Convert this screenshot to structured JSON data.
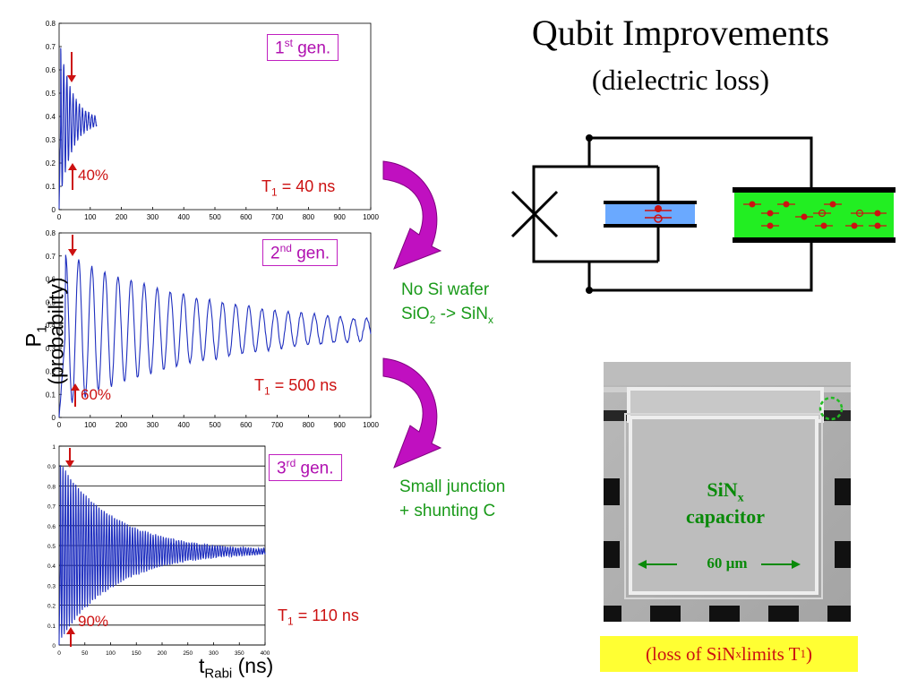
{
  "slide": {
    "title": "Qubit Improvements",
    "subtitle": "(dielectric loss)",
    "y_axis_label_main": "P",
    "y_axis_label_sub": "1",
    "y_axis_label_paren": "(probability)",
    "x_axis_label_main": "t",
    "x_axis_label_sub": "Rabi",
    "x_axis_label_unit": "(ns)",
    "caption_pre": "(loss of SiN",
    "caption_sub": "x",
    "caption_mid": " limits T",
    "caption_sub2": "1",
    "caption_post": ")"
  },
  "generations": [
    {
      "gen_num": "1",
      "gen_sup": "st",
      "gen_word": " gen.",
      "t1_main": "T",
      "t1_sub": "1",
      "t1_value": " = 40 ns",
      "percent": "40%"
    },
    {
      "gen_num": "2",
      "gen_sup": "nd",
      "gen_word": " gen.",
      "t1_main": "T",
      "t1_sub": "1",
      "t1_value": " = 500 ns",
      "percent": "60%"
    },
    {
      "gen_num": "3",
      "gen_sup": "rd",
      "gen_word": " gen.",
      "t1_main": "T",
      "t1_sub": "1",
      "t1_value": " = 110 ns",
      "percent": "90%"
    }
  ],
  "transitions": [
    {
      "line1": "No Si wafer",
      "line2_pre": "SiO",
      "line2_sub": "2",
      "line2_mid": " -> SiN",
      "line2_sub2": "x"
    },
    {
      "line1": "Small junction",
      "line2": "+ shunting C"
    }
  ],
  "micrograph": {
    "label_line1_main": "SiN",
    "label_line1_sub": "x",
    "label_line2": "capacitor",
    "scale_label": "60 µm"
  },
  "colors": {
    "trace": "#1f2fbf",
    "accent_red": "#cc1111",
    "box_magenta": "#c020c0",
    "arrow_magenta": "#c010c0",
    "text_green": "#1a9a1a",
    "dielectric_blue": "#6aa9ff",
    "dielectric_green": "#22ee22",
    "caption_yellow": "#ffff33"
  },
  "chart_data": [
    {
      "type": "line",
      "title": "",
      "xlabel": "",
      "ylabel": "",
      "xlim": [
        0,
        1000
      ],
      "ylim": [
        0,
        0.8
      ],
      "xticks": [
        "0",
        "100",
        "200",
        "300",
        "400",
        "500",
        "600",
        "700",
        "800",
        "900",
        "1000"
      ],
      "yticks": [
        "0",
        "0.1",
        "0.2",
        "0.3",
        "0.4",
        "0.5",
        "0.6",
        "0.7",
        "0.8"
      ],
      "series": [
        {
          "model": "damped_oscillation",
          "t_end": 120,
          "mean": 0.38,
          "amplitude": 0.36,
          "period_ns": 10,
          "decay_ns": 40
        }
      ],
      "grid": false
    },
    {
      "type": "line",
      "title": "",
      "xlabel": "",
      "ylabel": "",
      "xlim": [
        0,
        1000
      ],
      "ylim": [
        0,
        0.8
      ],
      "xticks": [
        "0",
        "100",
        "200",
        "300",
        "400",
        "500",
        "600",
        "700",
        "800",
        "900",
        "1000"
      ],
      "yticks": [
        "0",
        "0.1",
        "0.2",
        "0.3",
        "0.4",
        "0.5",
        "0.6",
        "0.7",
        "0.8"
      ],
      "series": [
        {
          "model": "damped_oscillation",
          "t_end": 1000,
          "mean": 0.38,
          "amplitude": 0.34,
          "period_ns": 42,
          "decay_ns": 500
        }
      ],
      "grid": false
    },
    {
      "type": "line",
      "title": "",
      "xlabel": "",
      "ylabel": "",
      "xlim": [
        0,
        400
      ],
      "ylim": [
        0,
        1
      ],
      "xticks": [
        "0",
        "50",
        "100",
        "150",
        "200",
        "250",
        "300",
        "350",
        "400"
      ],
      "yticks": [
        "0",
        "0.1",
        "0.2",
        "0.3",
        "0.4",
        "0.5",
        "0.6",
        "0.7",
        "0.8",
        "0.9",
        "1"
      ],
      "series": [
        {
          "model": "damped_oscillation",
          "t_end": 400,
          "mean": 0.47,
          "amplitude": 0.45,
          "period_ns": 5,
          "decay_ns": 110
        }
      ],
      "grid": true
    }
  ]
}
